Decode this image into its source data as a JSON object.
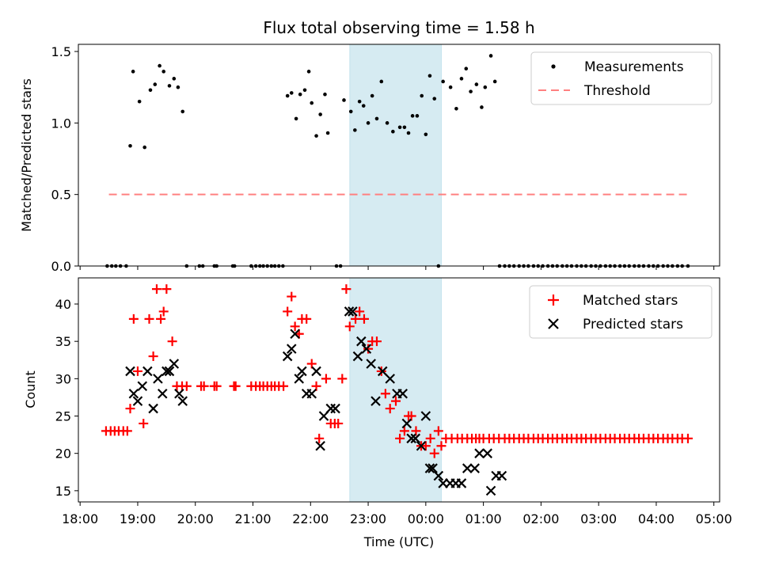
{
  "chart_data": {
    "type": "scatter",
    "title": "Flux total observing time = 1.58 h",
    "xlabel": "Time (UTC)",
    "x_ticks": [
      "18:00",
      "19:00",
      "20:00",
      "21:00",
      "22:00",
      "23:00",
      "00:00",
      "01:00",
      "02:00",
      "03:00",
      "04:00",
      "05:00"
    ],
    "x_range_hours": [
      17.97,
      29.1
    ],
    "shaded_span_hours": [
      22.68,
      24.27
    ],
    "shade_color": "#add8e6",
    "top_panel": {
      "ylabel": "Matched/Predicted stars",
      "ylim": [
        0,
        1.55
      ],
      "y_ticks": [
        "0.0",
        "0.5",
        "1.0",
        "1.5"
      ],
      "legend": [
        "Measurements",
        "Threshold"
      ],
      "legend_position": "upper right",
      "threshold": {
        "value": 0.5,
        "x_range_hours": [
          18.5,
          28.6
        ],
        "color": "#ff8080"
      },
      "measurements": {
        "color": "#000000",
        "x": [
          18.47,
          18.55,
          18.62,
          18.7,
          18.8,
          18.87,
          18.92,
          19.03,
          19.12,
          19.22,
          19.3,
          19.38,
          19.45,
          19.55,
          19.63,
          19.7,
          19.78,
          19.85,
          20.07,
          20.13,
          20.33,
          20.37,
          20.65,
          20.68,
          20.97,
          21.05,
          21.12,
          21.18,
          21.25,
          21.32,
          21.38,
          21.45,
          21.52,
          21.6,
          21.67,
          21.75,
          21.82,
          21.9,
          21.97,
          22.02,
          22.1,
          22.17,
          22.25,
          22.3,
          22.45,
          22.52,
          22.58,
          22.7,
          22.77,
          22.85,
          22.92,
          23.0,
          23.07,
          23.15,
          23.23,
          23.33,
          23.43,
          23.55,
          23.63,
          23.7,
          23.77,
          23.85,
          23.93,
          24.0,
          24.07,
          24.15,
          24.22,
          24.3,
          24.43,
          24.53,
          24.62,
          24.7,
          24.78,
          24.88,
          24.97,
          25.03,
          25.13,
          25.2,
          25.28,
          25.37,
          25.45,
          25.53,
          25.62,
          25.7,
          25.78,
          25.87,
          25.95,
          26.03,
          26.12,
          26.2,
          26.28,
          26.37,
          26.45,
          26.53,
          26.62,
          26.7,
          26.78,
          26.87,
          26.95,
          27.03,
          27.12,
          27.2,
          27.28,
          27.37,
          27.45,
          27.53,
          27.62,
          27.7,
          27.78,
          27.87,
          27.95,
          28.03,
          28.12,
          28.2,
          28.28,
          28.37,
          28.45,
          28.55
        ],
        "y": [
          0,
          0,
          0,
          0,
          0,
          0.84,
          1.36,
          1.15,
          0.83,
          1.23,
          1.27,
          1.4,
          1.36,
          1.26,
          1.31,
          1.25,
          1.08,
          0,
          0,
          0,
          0,
          0,
          0,
          0,
          0,
          0,
          0,
          0,
          0,
          0,
          0,
          0,
          0,
          1.19,
          1.21,
          1.03,
          1.2,
          1.23,
          1.36,
          1.14,
          0.91,
          1.06,
          1.2,
          0.93,
          0,
          0,
          1.16,
          1.08,
          0.95,
          1.15,
          1.12,
          1.0,
          1.19,
          1.03,
          1.29,
          1.0,
          0.94,
          0.97,
          0.97,
          0.93,
          1.05,
          1.05,
          1.19,
          0.92,
          1.33,
          1.17,
          0,
          1.29,
          1.25,
          1.1,
          1.31,
          1.38,
          1.22,
          1.27,
          1.11,
          1.25,
          1.47,
          1.29,
          0,
          0,
          0,
          0,
          0,
          0,
          0,
          0,
          0,
          0,
          0,
          0,
          0,
          0,
          0,
          0,
          0,
          0,
          0,
          0,
          0,
          0,
          0,
          0,
          0,
          0,
          0,
          0,
          0,
          0,
          0,
          0,
          0,
          0,
          0,
          0,
          0,
          0,
          0,
          0
        ]
      }
    },
    "bottom_panel": {
      "ylabel": "Count",
      "ylim": [
        13.5,
        43.5
      ],
      "y_ticks": [
        "15",
        "20",
        "25",
        "30",
        "35",
        "40"
      ],
      "legend": [
        "Matched stars",
        "Predicted stars"
      ],
      "legend_position": "upper right",
      "matched": {
        "color": "#ff0000",
        "marker": "+",
        "x": [
          18.45,
          18.53,
          18.6,
          18.67,
          18.75,
          18.82,
          18.87,
          18.93,
          19.0,
          19.1,
          19.2,
          19.27,
          19.33,
          19.4,
          19.45,
          19.5,
          19.6,
          19.68,
          19.77,
          19.85,
          20.1,
          20.15,
          20.33,
          20.37,
          20.67,
          20.7,
          20.97,
          21.05,
          21.12,
          21.18,
          21.25,
          21.32,
          21.38,
          21.45,
          21.53,
          21.6,
          21.67,
          21.73,
          21.8,
          21.85,
          21.93,
          22.02,
          22.1,
          22.15,
          22.27,
          22.35,
          22.42,
          22.48,
          22.55,
          22.62,
          22.68,
          22.78,
          22.85,
          22.93,
          23.0,
          23.07,
          23.15,
          23.23,
          23.3,
          23.38,
          23.48,
          23.55,
          23.63,
          23.7,
          23.75,
          23.83,
          23.92,
          24.0,
          24.08,
          24.15,
          24.22,
          24.27,
          24.35,
          24.45,
          24.55,
          24.63,
          24.72,
          24.8,
          24.87,
          24.93,
          25.0,
          25.1,
          25.18,
          25.27,
          25.37,
          25.45,
          25.53,
          25.62,
          25.7,
          25.78,
          25.87,
          25.95,
          26.03,
          26.12,
          26.2,
          26.28,
          26.37,
          26.45,
          26.53,
          26.62,
          26.7,
          26.78,
          26.87,
          26.95,
          27.03,
          27.12,
          27.2,
          27.28,
          27.37,
          27.45,
          27.53,
          27.62,
          27.7,
          27.78,
          27.87,
          27.95,
          28.03,
          28.12,
          28.2,
          28.28,
          28.37,
          28.45,
          28.55
        ],
        "y": [
          23,
          23,
          23,
          23,
          23,
          23,
          26,
          38,
          31,
          24,
          38,
          33,
          42,
          38,
          39,
          42,
          35,
          29,
          29,
          29,
          29,
          29,
          29,
          29,
          29,
          29,
          29,
          29,
          29,
          29,
          29,
          29,
          29,
          29,
          29,
          39,
          41,
          37,
          36,
          38,
          38,
          32,
          29,
          22,
          30,
          24,
          24,
          24,
          30,
          42,
          37,
          38,
          39,
          38,
          34,
          35,
          35,
          31,
          28,
          26,
          27,
          22,
          23,
          25,
          25,
          23,
          21,
          21,
          22,
          20,
          23,
          21,
          22,
          22,
          22,
          22,
          22,
          22,
          22,
          22,
          22,
          22,
          22,
          22,
          22,
          22,
          22,
          22,
          22,
          22,
          22,
          22,
          22,
          22,
          22,
          22,
          22,
          22,
          22,
          22,
          22,
          22,
          22,
          22,
          22,
          22,
          22,
          22,
          22,
          22,
          22,
          22,
          22,
          22,
          22,
          22,
          22,
          22,
          22,
          22,
          22,
          22,
          22
        ]
      },
      "predicted": {
        "color": "#000000",
        "marker": "x",
        "x": [
          18.87,
          18.93,
          19.0,
          19.08,
          19.17,
          19.27,
          19.35,
          19.43,
          19.5,
          19.55,
          19.63,
          19.72,
          19.78,
          21.6,
          21.67,
          21.73,
          21.8,
          21.85,
          21.93,
          22.02,
          22.1,
          22.17,
          22.23,
          22.35,
          22.43,
          22.67,
          22.73,
          22.82,
          22.88,
          22.97,
          23.05,
          23.13,
          23.25,
          23.38,
          23.5,
          23.6,
          23.67,
          23.75,
          23.82,
          23.92,
          24.0,
          24.07,
          24.12,
          24.22,
          24.3,
          24.42,
          24.52,
          24.62,
          24.72,
          24.85,
          24.93,
          25.07,
          25.13,
          25.22,
          25.32
        ],
        "y": [
          31,
          28,
          27,
          29,
          31,
          26,
          30,
          28,
          31,
          31,
          32,
          28,
          27,
          33,
          34,
          36,
          30,
          31,
          28,
          28,
          31,
          21,
          25,
          26,
          26,
          39,
          39,
          33,
          35,
          34,
          32,
          27,
          31,
          30,
          28,
          28,
          24,
          22,
          22,
          21,
          25,
          18,
          18,
          17,
          16,
          16,
          16,
          16,
          18,
          18,
          20,
          20,
          15,
          17,
          17
        ]
      }
    }
  }
}
